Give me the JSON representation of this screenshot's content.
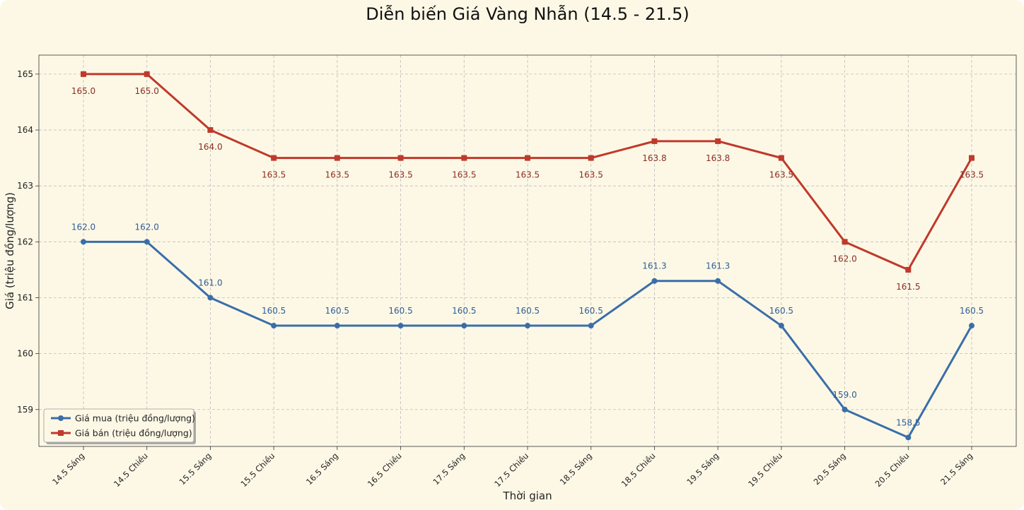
{
  "chart_data": {
    "type": "line",
    "title": "Diễn biến Giá Vàng Nhẫn (14.5 - 21.5)",
    "xlabel": "Thời gian",
    "ylabel": "Giá (triệu đồng/lượng)",
    "categories": [
      "14.5 Sáng",
      "14.5 Chiều",
      "15.5 Sáng",
      "15.5 Chiều",
      "16.5 Sáng",
      "16.5 Chiều",
      "17.5 Sáng",
      "17.5 Chiều",
      "18.5 Sáng",
      "18.5 Chiều",
      "19.5 Sáng",
      "19.5 Chiều",
      "20.5 Sáng",
      "20.5 Chiều",
      "21.5 Sáng"
    ],
    "yticks": [
      "159",
      "160",
      "161",
      "162",
      "163",
      "164",
      "165"
    ],
    "ylim": [
      158.34,
      165.34
    ],
    "grid": true,
    "legend_position": "bottom-left",
    "series": [
      {
        "name": "Giá mua (triệu đồng/lượng)",
        "color": "#3a6ea8",
        "marker": "circle",
        "label_position": "above",
        "values": [
          162.0,
          162.0,
          161.0,
          160.5,
          160.5,
          160.5,
          160.5,
          160.5,
          160.5,
          161.3,
          161.3,
          160.5,
          159.0,
          158.5,
          160.5
        ],
        "labels": [
          "162.0",
          "162.0",
          "161.0",
          "160.5",
          "160.5",
          "160.5",
          "160.5",
          "160.5",
          "160.5",
          "161.3",
          "161.3",
          "160.5",
          "159.0",
          "158.5",
          "160.5"
        ]
      },
      {
        "name": "Giá bán (triệu đồng/lượng)",
        "color": "#c0392b",
        "marker": "square",
        "label_position": "below",
        "values": [
          165.0,
          165.0,
          164.0,
          163.5,
          163.5,
          163.5,
          163.5,
          163.5,
          163.5,
          163.8,
          163.8,
          163.5,
          162.0,
          161.5,
          163.5
        ],
        "labels": [
          "165.0",
          "165.0",
          "164.0",
          "163.5",
          "163.5",
          "163.5",
          "163.5",
          "163.5",
          "163.5",
          "163.8",
          "163.8",
          "163.5",
          "162.0",
          "161.5",
          "163.5"
        ]
      }
    ]
  }
}
